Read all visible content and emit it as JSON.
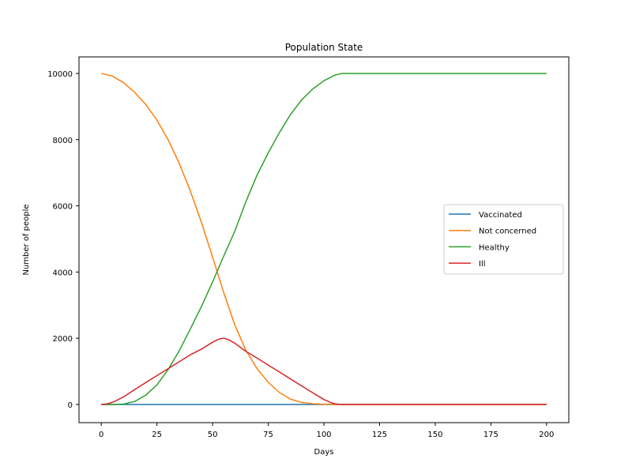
{
  "chart_data": {
    "type": "line",
    "title": "Population State",
    "xlabel": "Days",
    "ylabel": "Number of people",
    "xlim": [
      -10,
      210
    ],
    "ylim": [
      -550,
      10500
    ],
    "xticks": [
      0,
      25,
      50,
      75,
      100,
      125,
      150,
      175,
      200
    ],
    "yticks": [
      0,
      2000,
      4000,
      6000,
      8000,
      10000
    ],
    "grid": false,
    "legend_position": "center-right",
    "series": [
      {
        "name": "Vaccinated",
        "color": "#1f77b4",
        "x": [
          0,
          200
        ],
        "y": [
          0,
          0
        ]
      },
      {
        "name": "Not concerned",
        "color": "#ff7f0e",
        "x": [
          0,
          5,
          10,
          15,
          20,
          25,
          30,
          35,
          40,
          45,
          50,
          55,
          60,
          65,
          70,
          75,
          80,
          85,
          90,
          95,
          100,
          105,
          108,
          110,
          200
        ],
        "y": [
          10000,
          9920,
          9720,
          9430,
          9060,
          8590,
          8000,
          7290,
          6450,
          5500,
          4450,
          3380,
          2400,
          1630,
          1080,
          670,
          360,
          160,
          60,
          20,
          5,
          0,
          0,
          0,
          0
        ]
      },
      {
        "name": "Healthy",
        "color": "#2ca02c",
        "x": [
          0,
          5,
          10,
          15,
          20,
          25,
          30,
          35,
          40,
          45,
          50,
          55,
          60,
          65,
          70,
          75,
          80,
          85,
          90,
          95,
          100,
          105,
          108,
          110,
          200
        ],
        "y": [
          0,
          0,
          10,
          90,
          280,
          590,
          1050,
          1620,
          2280,
          2960,
          3700,
          4480,
          5240,
          6130,
          6930,
          7600,
          8210,
          8760,
          9200,
          9530,
          9780,
          9950,
          10000,
          10000,
          10000
        ]
      },
      {
        "name": "Ill",
        "color": "#d62728",
        "x": [
          0,
          3,
          6,
          10,
          15,
          20,
          25,
          30,
          35,
          40,
          45,
          50,
          53,
          55,
          57,
          60,
          62,
          65,
          70,
          75,
          80,
          85,
          90,
          95,
          100,
          103,
          105,
          107,
          108,
          110,
          200
        ],
        "y": [
          0,
          20,
          90,
          230,
          450,
          660,
          870,
          1080,
          1290,
          1500,
          1670,
          1880,
          1980,
          2000,
          1960,
          1850,
          1750,
          1600,
          1400,
          1190,
          980,
          770,
          560,
          350,
          150,
          60,
          20,
          5,
          0,
          0,
          0
        ]
      }
    ]
  }
}
